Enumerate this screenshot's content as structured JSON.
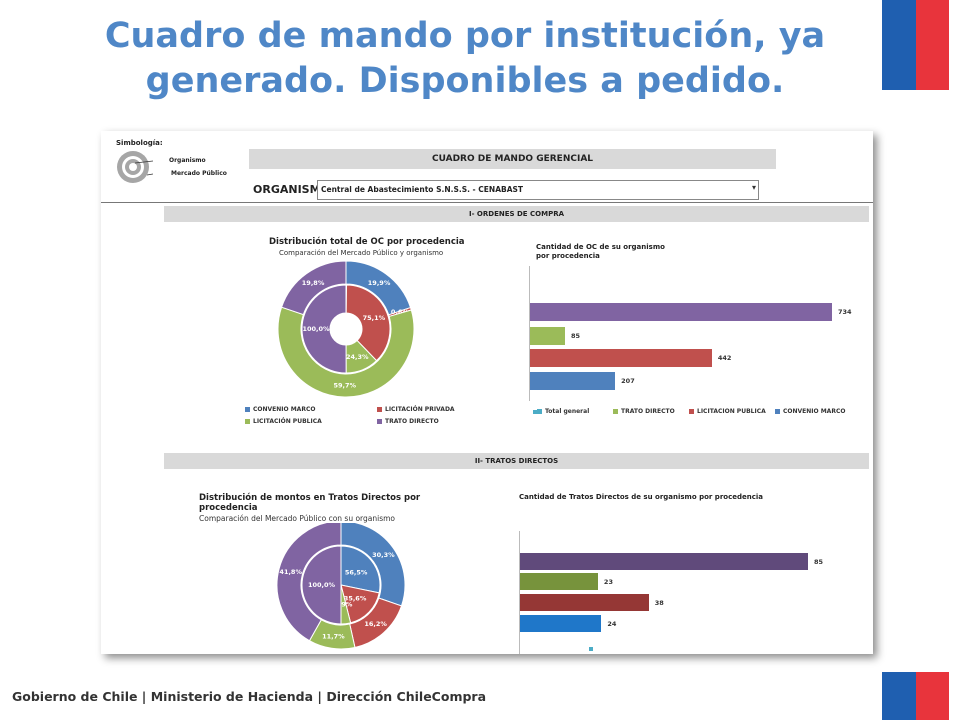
{
  "title": "Cuadro de mando por institución, ya generado. Disponibles a pedido.",
  "footer": "Gobierno de Chile | Ministerio de Hacienda | Dirección ChileCompra",
  "colors": {
    "flag_blue": "#1f5fb0",
    "flag_red": "#e8343c",
    "title": "#4f87c7"
  },
  "screenshot": {
    "symbology": {
      "label": "Simbología:",
      "inner": "Organismo",
      "outer": "Mercado Público"
    },
    "header": "CUADRO DE MANDO GERENCIAL",
    "org_label": "ORGANISMO",
    "org_value": "Central de Abastecimiento S.N.S.S. -  CENABAST",
    "section1": "I- ORDENES DE COMPRA",
    "section2": "II- TRATOS DIRECTOS",
    "oc_donut": {
      "title": "Distribución total de OC por procedencia",
      "subtitle": "Comparación del Mercado Público y organismo",
      "legend": [
        "CONVENIO MARCO",
        "LICITACIÓN PRIVADA",
        "LICITACIÓN PUBLICA",
        "TRATO DIRECTO"
      ],
      "legend_colors": [
        "#4f81bd",
        "#c0504d",
        "#9bbb59",
        "#8064a2"
      ]
    },
    "oc_bars": {
      "title": "Cantidad de OC de su organismo por procedencia",
      "legend": [
        "Total general",
        "TRATO DIRECTO",
        "LICITACION PUBLICA",
        "CONVENIO MARCO"
      ],
      "legend_colors": [
        "#4bacc6",
        "#9bbb59",
        "#c0504d",
        "#4f81bd"
      ]
    },
    "td_donut": {
      "title": "Distribución de montos en Tratos Directos por procedencia",
      "subtitle": "Comparación del Mercado Público  con su organismo"
    },
    "td_bars": {
      "title": "Cantidad de Tratos Directos de su organismo por procedencia"
    }
  },
  "chart_data": [
    {
      "type": "pie",
      "title": "Distribución total de OC por procedencia",
      "subtitle": "Comparación del Mercado Público y organismo",
      "rings": [
        {
          "name": "Mercado Público",
          "categories": [
            "CONVENIO MARCO",
            "LICITACIÓN PRIVADA",
            "LICITACIÓN PUBLICA",
            "TRATO DIRECTO"
          ],
          "values": [
            19.9,
            0.6,
            59.7,
            19.8
          ],
          "labels": [
            "19,9%",
            "0,6%",
            "59,7%",
            "19,8%"
          ]
        },
        {
          "name": "Organismo",
          "categories": [
            "CONVENIO MARCO",
            "LICITACIÓN PRIVADA",
            "LICITACIÓN PUBLICA",
            "TRATO DIRECTO"
          ],
          "values": [
            0.4,
            75.1,
            24.3,
            100.0
          ],
          "labels": [
            "0,4%",
            "75,1%",
            "24,3%",
            "100,0%"
          ]
        }
      ]
    },
    {
      "type": "bar",
      "title": "Cantidad de OC de su organismo por procedencia",
      "categories": [
        "Total general",
        "TRATO DIRECTO",
        "LICITACION PUBLICA",
        "CONVENIO MARCO"
      ],
      "values": [
        734,
        85,
        442,
        207
      ],
      "colors": [
        "#8064a2",
        "#9bbb59",
        "#c0504d",
        "#4f81bd"
      ],
      "xlim": [
        0,
        734
      ]
    },
    {
      "type": "pie",
      "title": "Distribución de montos en Tratos Directos por procedencia",
      "subtitle": "Comparación del Mercado Público  con su organismo",
      "rings": [
        {
          "name": "outer",
          "values": [
            30.3,
            16.2,
            11.7,
            41.8
          ],
          "labels": [
            "30,3%",
            "16,2%",
            "11,7%",
            "41,8%"
          ]
        },
        {
          "name": "inner",
          "values": [
            56.5,
            35.6,
            7.9,
            100.0
          ],
          "labels": [
            "56,5%",
            "35,6%",
            "7,9%",
            "100,0%"
          ]
        }
      ]
    },
    {
      "type": "bar",
      "title": "Cantidad de Tratos Directos de su organismo por procedencia",
      "values": [
        85,
        23,
        38,
        24
      ],
      "colors": [
        "#604a7b",
        "#77933c",
        "#953735",
        "#1f77c9"
      ],
      "xlim": [
        0,
        85
      ]
    }
  ]
}
